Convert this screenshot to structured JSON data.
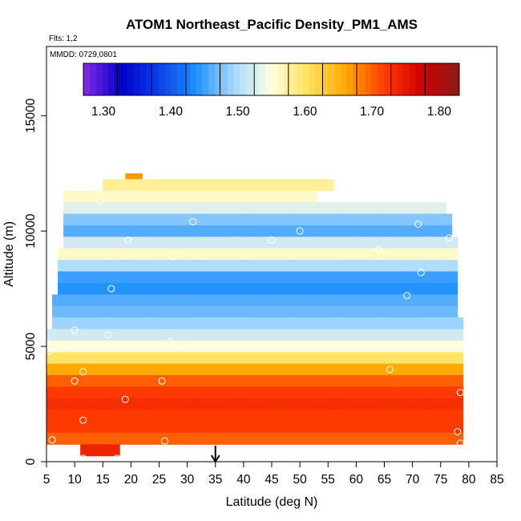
{
  "chart_data": {
    "type": "heatmap",
    "title": "ATOM1 Northeast_Pacific Density_PM1_AMS",
    "flights_label": "Flts: 1,2",
    "mmdd_label": "MMDD: 0729,0801",
    "xlabel": "Latitude (deg N)",
    "ylabel": "Altitude (m)",
    "xlim": [
      5,
      85
    ],
    "ylim": [
      0,
      18000
    ],
    "x_ticks": [
      5,
      10,
      15,
      20,
      25,
      30,
      35,
      40,
      45,
      50,
      55,
      60,
      65,
      70,
      75,
      80,
      85
    ],
    "y_ticks": [
      0,
      5000,
      10000,
      15000
    ],
    "colorbar": {
      "range": [
        1.27,
        1.83
      ],
      "ticks": [
        "1.30",
        "1.40",
        "1.50",
        "1.60",
        "1.70",
        "1.80"
      ],
      "tick_values": [
        1.3,
        1.4,
        1.5,
        1.6,
        1.7,
        1.8
      ],
      "segments": 11,
      "colors": [
        "#8a2be2",
        "#0000cc",
        "#0a3ee6",
        "#1e90ff",
        "#a8d8ff",
        "#ffffe0",
        "#ffe05a",
        "#ffa800",
        "#ff3c00",
        "#d00000",
        "#8b1a1a"
      ]
    },
    "arrow_latitude": 35,
    "grid": false,
    "rows": [
      {
        "alt": 12250,
        "lat": [
          19,
          22
        ],
        "v": 1.67
      },
      {
        "alt": 12000,
        "lat": [
          15,
          56
        ],
        "v": 1.58
      },
      {
        "alt": 11500,
        "lat": [
          8,
          53
        ],
        "v": 1.56
      },
      {
        "alt": 11000,
        "lat": [
          8,
          76
        ],
        "v": 1.53
      },
      {
        "alt": 10500,
        "lat": [
          8,
          77
        ],
        "v": 1.48
      },
      {
        "alt": 10000,
        "lat": [
          8,
          77
        ],
        "v": 1.46
      },
      {
        "alt": 9500,
        "lat": [
          8,
          78
        ],
        "v": 1.52
      },
      {
        "alt": 9000,
        "lat": [
          7,
          78
        ],
        "v": 1.56
      },
      {
        "alt": 8500,
        "lat": [
          7,
          78
        ],
        "v": 1.5
      },
      {
        "alt": 8000,
        "lat": [
          7,
          78
        ],
        "v": 1.45
      },
      {
        "alt": 7500,
        "lat": [
          7,
          78
        ],
        "v": 1.44
      },
      {
        "alt": 7000,
        "lat": [
          6,
          78
        ],
        "v": 1.46
      },
      {
        "alt": 6500,
        "lat": [
          6,
          78
        ],
        "v": 1.47
      },
      {
        "alt": 6000,
        "lat": [
          6,
          79
        ],
        "v": 1.49
      },
      {
        "alt": 5500,
        "lat": [
          5,
          79
        ],
        "v": 1.52
      },
      {
        "alt": 5000,
        "lat": [
          5,
          79
        ],
        "v": 1.55
      },
      {
        "alt": 4500,
        "lat": [
          5,
          79
        ],
        "v": 1.6
      },
      {
        "alt": 4000,
        "lat": [
          5,
          79
        ],
        "v": 1.66
      },
      {
        "alt": 3500,
        "lat": [
          5,
          79
        ],
        "v": 1.7
      },
      {
        "alt": 3000,
        "lat": [
          5,
          79
        ],
        "v": 1.72
      },
      {
        "alt": 2500,
        "lat": [
          5,
          79
        ],
        "v": 1.73
      },
      {
        "alt": 2000,
        "lat": [
          5,
          79
        ],
        "v": 1.72
      },
      {
        "alt": 1500,
        "lat": [
          5,
          79
        ],
        "v": 1.72
      },
      {
        "alt": 1000,
        "lat": [
          5,
          79
        ],
        "v": 1.7
      },
      {
        "alt": 500,
        "lat": [
          11,
          18
        ],
        "v": 1.74
      }
    ],
    "points": [
      [
        14.5,
        11300
      ],
      [
        19.5,
        9600
      ],
      [
        31,
        10400
      ],
      [
        45,
        9600
      ],
      [
        50,
        10000
      ],
      [
        27.5,
        8900
      ],
      [
        64,
        9200
      ],
      [
        71,
        10300
      ],
      [
        76.5,
        9700
      ],
      [
        71.5,
        8200
      ],
      [
        69,
        7200
      ],
      [
        16.5,
        7500
      ],
      [
        10,
        5700
      ],
      [
        16,
        5500
      ],
      [
        27,
        5200
      ],
      [
        5.5,
        4800
      ],
      [
        11.5,
        3900
      ],
      [
        10,
        3500
      ],
      [
        25.5,
        3500
      ],
      [
        66,
        4000
      ],
      [
        19,
        2700
      ],
      [
        78.5,
        3000
      ],
      [
        11.5,
        1800
      ],
      [
        6,
        950
      ],
      [
        26,
        900
      ],
      [
        78,
        1300
      ],
      [
        78.5,
        800
      ],
      [
        11.5,
        150
      ],
      [
        17.5,
        150
      ]
    ]
  }
}
